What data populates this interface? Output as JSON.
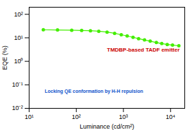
{
  "chart_data": {
    "type": "line",
    "x": [
      20,
      40,
      80,
      130,
      200,
      300,
      450,
      650,
      900,
      1200,
      1600,
      2100,
      2800,
      3700,
      5000,
      6500,
      8500,
      11000,
      15000
    ],
    "values": [
      22.0,
      21.5,
      21.0,
      20.5,
      20.0,
      19.0,
      17.5,
      15.5,
      13.5,
      12.0,
      10.5,
      9.2,
      8.1,
      7.2,
      6.3,
      5.7,
      5.2,
      4.9,
      4.6
    ],
    "color": "#44ee00",
    "marker": "circle",
    "x_label": "Luminance (cd/cm²)",
    "y_label": "EQE (%)",
    "log": true,
    "grid": false,
    "xlim": [
      10,
      20000
    ],
    "ylim": [
      0.01,
      200
    ],
    "xticks": [
      {
        "value": 10,
        "label": "10¹"
      },
      {
        "value": 100,
        "label": "10²"
      },
      {
        "value": 1000,
        "label": "10³"
      },
      {
        "value": 10000,
        "label": "10⁴"
      }
    ],
    "yticks": [
      {
        "value": 0.01,
        "label": "10⁻²"
      },
      {
        "value": 0.1,
        "label": "10⁻¹"
      },
      {
        "value": 1,
        "label": "10⁰"
      },
      {
        "value": 10,
        "label": "10¹"
      },
      {
        "value": 100,
        "label": "10²"
      }
    ],
    "annotations": [
      {
        "text": "TMDBP-based TADF emitter",
        "color": "#cc0000"
      },
      {
        "text": "Locking QE conformation by H-H repulsion",
        "color": "#1155cc"
      }
    ]
  }
}
